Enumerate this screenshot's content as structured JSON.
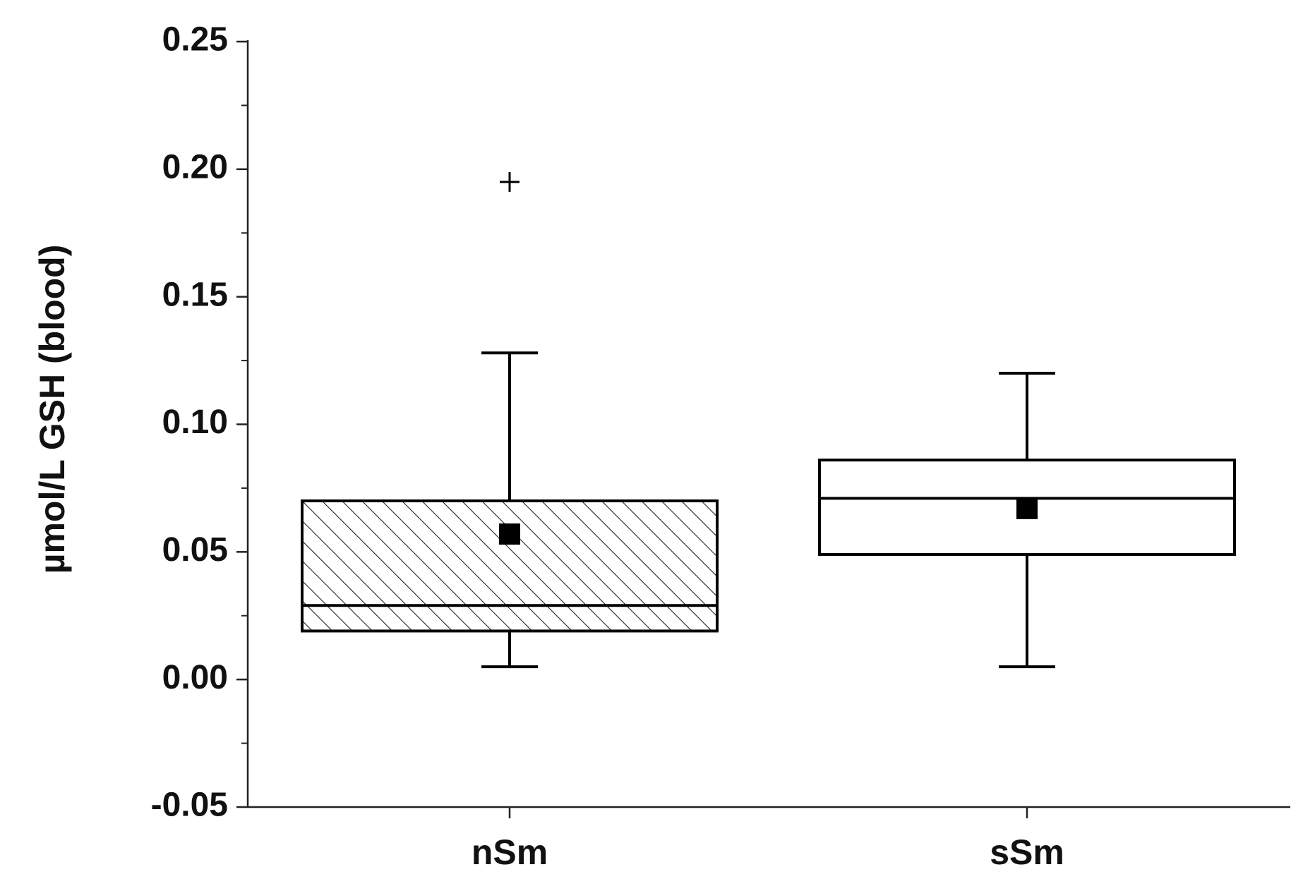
{
  "chart_data": {
    "type": "box",
    "y_label": "µmol/L GSH (blood)",
    "categories": [
      "nSm",
      "sSm"
    ],
    "boxes": [
      {
        "min": 0.005,
        "q1": 0.019,
        "median": 0.029,
        "q3": 0.07,
        "max": 0.128,
        "mean": 0.057,
        "outliers": [
          0.195
        ],
        "hatch": true,
        "color": "#000000"
      },
      {
        "min": 0.005,
        "q1": 0.049,
        "median": 0.071,
        "q3": 0.086,
        "max": 0.12,
        "mean": 0.067,
        "outliers": [],
        "hatch": false,
        "color": "#000000"
      }
    ],
    "ylim": [
      -0.05,
      0.25
    ],
    "yticks": [
      {
        "value": -0.05,
        "label": "-0.05"
      },
      {
        "value": 0,
        "label": "0.00"
      },
      {
        "value": 0.05,
        "label": "0.05"
      },
      {
        "value": 0.1,
        "label": "0.10"
      },
      {
        "value": 0.15,
        "label": "0.15"
      },
      {
        "value": 0.2,
        "label": "0.20"
      },
      {
        "value": 0.25,
        "label": "0.25"
      }
    ],
    "yminorticks": [
      -0.025,
      0.025,
      0.075,
      0.125,
      0.175,
      0.225
    ],
    "grid": false
  }
}
